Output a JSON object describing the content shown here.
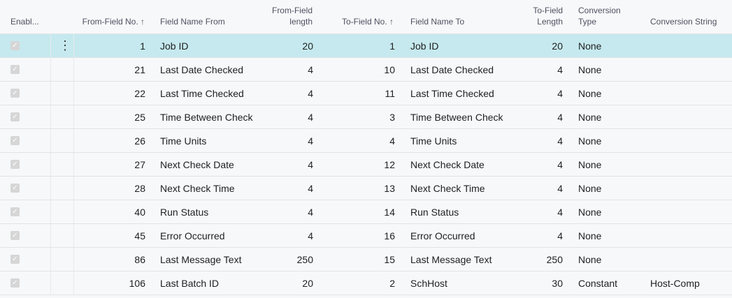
{
  "columns": {
    "enabled": "Enabl...",
    "from_no": "From-Field No. ↑",
    "from_name": "Field Name From",
    "from_len_1": "From-Field",
    "from_len_2": "length",
    "to_no": "To-Field No. ↑",
    "to_name": "Field Name To",
    "to_len_1": "To-Field",
    "to_len_2": "Length",
    "conv_type_1": "Conversion",
    "conv_type_2": "Type",
    "conv_string": "Conversion String"
  },
  "colors": {
    "selected_row": "#c5e9ee"
  },
  "rows": [
    {
      "enabled": true,
      "from_no": "1",
      "from_name": "Job ID",
      "from_len": "20",
      "to_no": "1",
      "to_name": "Job ID",
      "to_len": "20",
      "conv_type": "None",
      "conv_string": ""
    },
    {
      "enabled": true,
      "from_no": "21",
      "from_name": "Last Date Checked",
      "from_len": "4",
      "to_no": "10",
      "to_name": "Last Date Checked",
      "to_len": "4",
      "conv_type": "None",
      "conv_string": ""
    },
    {
      "enabled": true,
      "from_no": "22",
      "from_name": "Last Time Checked",
      "from_len": "4",
      "to_no": "11",
      "to_name": "Last Time Checked",
      "to_len": "4",
      "conv_type": "None",
      "conv_string": ""
    },
    {
      "enabled": true,
      "from_no": "25",
      "from_name": "Time Between Check",
      "from_len": "4",
      "to_no": "3",
      "to_name": "Time Between Check",
      "to_len": "4",
      "conv_type": "None",
      "conv_string": ""
    },
    {
      "enabled": true,
      "from_no": "26",
      "from_name": "Time Units",
      "from_len": "4",
      "to_no": "4",
      "to_name": "Time Units",
      "to_len": "4",
      "conv_type": "None",
      "conv_string": ""
    },
    {
      "enabled": true,
      "from_no": "27",
      "from_name": "Next Check Date",
      "from_len": "4",
      "to_no": "12",
      "to_name": "Next Check Date",
      "to_len": "4",
      "conv_type": "None",
      "conv_string": ""
    },
    {
      "enabled": true,
      "from_no": "28",
      "from_name": "Next Check Time",
      "from_len": "4",
      "to_no": "13",
      "to_name": "Next Check Time",
      "to_len": "4",
      "conv_type": "None",
      "conv_string": ""
    },
    {
      "enabled": true,
      "from_no": "40",
      "from_name": "Run Status",
      "from_len": "4",
      "to_no": "14",
      "to_name": "Run Status",
      "to_len": "4",
      "conv_type": "None",
      "conv_string": ""
    },
    {
      "enabled": true,
      "from_no": "45",
      "from_name": "Error Occurred",
      "from_len": "4",
      "to_no": "16",
      "to_name": "Error Occurred",
      "to_len": "4",
      "conv_type": "None",
      "conv_string": ""
    },
    {
      "enabled": true,
      "from_no": "86",
      "from_name": "Last Message Text",
      "from_len": "250",
      "to_no": "15",
      "to_name": "Last Message Text",
      "to_len": "250",
      "conv_type": "None",
      "conv_string": ""
    },
    {
      "enabled": true,
      "from_no": "106",
      "from_name": "Last Batch ID",
      "from_len": "20",
      "to_no": "2",
      "to_name": "SchHost",
      "to_len": "30",
      "conv_type": "Constant",
      "conv_string": "Host-Comp"
    }
  ]
}
